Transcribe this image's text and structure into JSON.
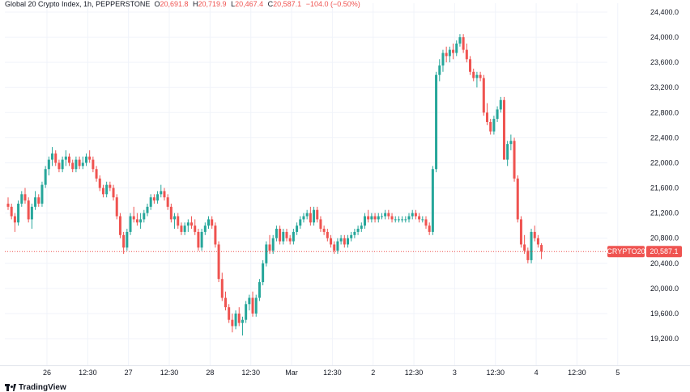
{
  "header": {
    "symbol": "Global 20 Crypto Index, 1h, PEPPERSTONE",
    "o_label": "O",
    "o_value": "20,691.8",
    "h_label": "H",
    "h_value": "20,719.9",
    "l_label": "L",
    "l_value": "20,467.4",
    "c_label": "C",
    "c_value": "20,587.1",
    "change": "−104.0 (−0.50%)"
  },
  "branding": {
    "logo_text": "TradingView"
  },
  "colors": {
    "up": "#26a69a",
    "down": "#ef5350",
    "price_line": "#ef5350",
    "grid": "#f0f3fa"
  },
  "chart_data": {
    "type": "candlestick",
    "title": "Global 20 Crypto Index, 1h, PEPPERSTONE",
    "ylim": [
      18950,
      24500
    ],
    "y_ticks": [
      "24,400.0",
      "24,000.0",
      "23,600.0",
      "23,200.0",
      "22,800.0",
      "22,400.0",
      "22,000.0",
      "21,600.0",
      "21,200.0",
      "20,800.0",
      "20,400.0",
      "20,000.0",
      "19,600.0",
      "19,200.0"
    ],
    "y_tick_values": [
      24400,
      24000,
      23600,
      23200,
      22800,
      22400,
      22000,
      21600,
      21200,
      20800,
      20400,
      20000,
      19600,
      19200
    ],
    "x_ticks": [
      "26",
      "12:30",
      "27",
      "12:30",
      "28",
      "12:30",
      "Mar",
      "12:30",
      "2",
      "12:30",
      "3",
      "12:30",
      "4",
      "12:30",
      "5"
    ],
    "x_tick_hours": [
      0,
      12,
      24,
      36,
      48,
      60,
      72,
      84,
      96,
      108,
      120,
      132,
      144,
      156,
      168
    ],
    "last_price": {
      "symbol": "CRYPTO20",
      "value": 20587.1,
      "label": "20,587.1"
    },
    "grid": true,
    "candles": [
      [
        0,
        21350,
        21450,
        21250,
        21300
      ],
      [
        1,
        21300,
        21350,
        21100,
        21150
      ],
      [
        2,
        21150,
        21200,
        20900,
        21050
      ],
      [
        3,
        21050,
        21400,
        21000,
        21350
      ],
      [
        4,
        21350,
        21550,
        21300,
        21500
      ],
      [
        5,
        21500,
        21600,
        21350,
        21400
      ],
      [
        6,
        21400,
        21450,
        21050,
        21100
      ],
      [
        7,
        21100,
        21350,
        20950,
        21300
      ],
      [
        8,
        21300,
        21550,
        21250,
        21450
      ],
      [
        9,
        21450,
        21500,
        21300,
        21350
      ],
      [
        10,
        21350,
        21700,
        21300,
        21650
      ],
      [
        11,
        21650,
        21950,
        21600,
        21900
      ],
      [
        12,
        21900,
        22100,
        21800,
        22050
      ],
      [
        13,
        22050,
        22250,
        21950,
        22150
      ],
      [
        14,
        22150,
        22200,
        21950,
        22000
      ],
      [
        15,
        22000,
        22050,
        21850,
        21900
      ],
      [
        16,
        21900,
        22100,
        21850,
        22050
      ],
      [
        17,
        22050,
        22200,
        21950,
        22100
      ],
      [
        18,
        22100,
        22150,
        21950,
        22000
      ],
      [
        19,
        22000,
        22050,
        21850,
        21900
      ],
      [
        20,
        21900,
        22100,
        21850,
        22050
      ],
      [
        21,
        22050,
        22100,
        21900,
        21950
      ],
      [
        22,
        21950,
        22100,
        21900,
        22000
      ],
      [
        23,
        22000,
        22150,
        21950,
        22100
      ],
      [
        24,
        22100,
        22200,
        22000,
        22050
      ],
      [
        25,
        22050,
        22100,
        21850,
        21900
      ],
      [
        26,
        21900,
        21950,
        21700,
        21750
      ],
      [
        27,
        21750,
        21800,
        21550,
        21600
      ],
      [
        28,
        21600,
        21650,
        21450,
        21500
      ],
      [
        29,
        21500,
        21700,
        21450,
        21650
      ],
      [
        30,
        21650,
        21700,
        21550,
        21600
      ],
      [
        31,
        21600,
        21650,
        21400,
        21450
      ],
      [
        32,
        21450,
        21500,
        21100,
        21150
      ],
      [
        33,
        21150,
        21200,
        20800,
        20850
      ],
      [
        34,
        20850,
        20900,
        20550,
        20650
      ],
      [
        35,
        20650,
        20950,
        20600,
        20900
      ],
      [
        36,
        20900,
        21200,
        20850,
        21150
      ],
      [
        37,
        21150,
        21300,
        21050,
        21100
      ],
      [
        38,
        21100,
        21200,
        21000,
        21050
      ],
      [
        39,
        21050,
        21200,
        20950,
        21100
      ],
      [
        40,
        21100,
        21250,
        21050,
        21200
      ],
      [
        41,
        21200,
        21350,
        21150,
        21300
      ],
      [
        42,
        21300,
        21500,
        21250,
        21450
      ],
      [
        43,
        21450,
        21500,
        21350,
        21400
      ],
      [
        44,
        21400,
        21550,
        21350,
        21500
      ],
      [
        45,
        21500,
        21650,
        21450,
        21550
      ],
      [
        46,
        21550,
        21600,
        21400,
        21450
      ],
      [
        47,
        21450,
        21500,
        21250,
        21300
      ],
      [
        48,
        21300,
        21350,
        21050,
        21100
      ],
      [
        49,
        21100,
        21200,
        20950,
        21150
      ],
      [
        50,
        21150,
        21200,
        20950,
        21000
      ],
      [
        51,
        21000,
        21050,
        20850,
        20900
      ],
      [
        52,
        20900,
        21050,
        20850,
        21000
      ],
      [
        53,
        21000,
        21100,
        20900,
        21050
      ],
      [
        54,
        21050,
        21150,
        20950,
        21000
      ],
      [
        55,
        21000,
        21100,
        20850,
        20900
      ],
      [
        56,
        20900,
        20950,
        20600,
        20650
      ],
      [
        57,
        20650,
        20950,
        20600,
        20900
      ],
      [
        58,
        20900,
        21050,
        20850,
        21000
      ],
      [
        59,
        21000,
        21150,
        20950,
        21100
      ],
      [
        60,
        21100,
        21150,
        20950,
        21000
      ],
      [
        61,
        21000,
        21050,
        20650,
        20700
      ],
      [
        62,
        20700,
        20750,
        20100,
        20150
      ],
      [
        63,
        20150,
        20250,
        19800,
        19850
      ],
      [
        64,
        19850,
        19950,
        19650,
        19700
      ],
      [
        65,
        19700,
        19750,
        19450,
        19500
      ],
      [
        66,
        19500,
        19600,
        19300,
        19400
      ],
      [
        67,
        19400,
        19650,
        19350,
        19600
      ],
      [
        68,
        19600,
        19700,
        19400,
        19450
      ],
      [
        69,
        19450,
        19550,
        19250,
        19500
      ],
      [
        70,
        19500,
        19800,
        19450,
        19750
      ],
      [
        71,
        19750,
        19900,
        19650,
        19850
      ],
      [
        72,
        19850,
        19950,
        19550,
        19600
      ],
      [
        73,
        19600,
        19900,
        19550,
        19850
      ],
      [
        74,
        19850,
        20150,
        19800,
        20100
      ],
      [
        75,
        20100,
        20450,
        20050,
        20400
      ],
      [
        76,
        20400,
        20750,
        20350,
        20700
      ],
      [
        77,
        20700,
        20850,
        20550,
        20600
      ],
      [
        78,
        20600,
        20850,
        20550,
        20800
      ],
      [
        79,
        20800,
        21000,
        20750,
        20950
      ],
      [
        80,
        20950,
        21000,
        20700,
        20750
      ],
      [
        81,
        20750,
        20950,
        20700,
        20900
      ],
      [
        82,
        20900,
        20950,
        20750,
        20800
      ],
      [
        83,
        20800,
        20850,
        20700,
        20750
      ],
      [
        84,
        20750,
        20950,
        20700,
        20900
      ],
      [
        85,
        20900,
        21050,
        20850,
        21000
      ],
      [
        86,
        21000,
        21150,
        20950,
        21100
      ],
      [
        87,
        21100,
        21200,
        21050,
        21150
      ],
      [
        88,
        21150,
        21250,
        21100,
        21200
      ],
      [
        89,
        21200,
        21300,
        21000,
        21050
      ],
      [
        90,
        21050,
        21300,
        21000,
        21250
      ],
      [
        91,
        21250,
        21300,
        21050,
        21100
      ],
      [
        92,
        21100,
        21150,
        20900,
        20950
      ],
      [
        93,
        20950,
        21000,
        20850,
        20900
      ],
      [
        94,
        20900,
        20950,
        20750,
        20800
      ],
      [
        95,
        20800,
        20850,
        20650,
        20700
      ],
      [
        96,
        20700,
        20750,
        20550,
        20600
      ],
      [
        97,
        20600,
        20800,
        20550,
        20750
      ],
      [
        98,
        20750,
        20850,
        20700,
        20800
      ],
      [
        99,
        20800,
        20850,
        20650,
        20700
      ],
      [
        100,
        20700,
        20850,
        20650,
        20800
      ],
      [
        101,
        20800,
        20900,
        20750,
        20850
      ],
      [
        102,
        20850,
        20950,
        20800,
        20900
      ],
      [
        103,
        20900,
        21000,
        20850,
        20950
      ],
      [
        104,
        20950,
        21050,
        20900,
        21000
      ],
      [
        105,
        21000,
        21200,
        20950,
        21150
      ],
      [
        106,
        21150,
        21250,
        21050,
        21100
      ],
      [
        107,
        21100,
        21200,
        21050,
        21150
      ],
      [
        108,
        21150,
        21200,
        21050,
        21100
      ],
      [
        109,
        21100,
        21200,
        21050,
        21150
      ],
      [
        110,
        21150,
        21200,
        21100,
        21150
      ],
      [
        111,
        21150,
        21250,
        21100,
        21200
      ],
      [
        112,
        21200,
        21250,
        21100,
        21150
      ],
      [
        113,
        21150,
        21200,
        21050,
        21100
      ],
      [
        114,
        21100,
        21150,
        21050,
        21100
      ],
      [
        115,
        21100,
        21150,
        21050,
        21100
      ],
      [
        116,
        21100,
        21150,
        21050,
        21100
      ],
      [
        117,
        21100,
        21150,
        21050,
        21100
      ],
      [
        118,
        21100,
        21200,
        21050,
        21150
      ],
      [
        119,
        21150,
        21250,
        21100,
        21200
      ],
      [
        120,
        21200,
        21250,
        21100,
        21150
      ],
      [
        121,
        21150,
        21200,
        21050,
        21100
      ],
      [
        122,
        21100,
        21150,
        21050,
        21100
      ],
      [
        123,
        21100,
        21150,
        20950,
        21000
      ],
      [
        124,
        21000,
        21050,
        20850,
        20900
      ],
      [
        125,
        20900,
        21950,
        20850,
        21900
      ],
      [
        126,
        21900,
        23450,
        21850,
        23400
      ],
      [
        127,
        23400,
        23650,
        23300,
        23550
      ],
      [
        128,
        23550,
        23800,
        23450,
        23750
      ],
      [
        129,
        23750,
        23850,
        23600,
        23700
      ],
      [
        130,
        23700,
        23850,
        23600,
        23800
      ],
      [
        131,
        23800,
        23900,
        23650,
        23750
      ],
      [
        132,
        23750,
        23950,
        23700,
        23900
      ],
      [
        133,
        23900,
        24050,
        23850,
        24000
      ],
      [
        134,
        24000,
        24050,
        23750,
        23800
      ],
      [
        135,
        23800,
        23900,
        23600,
        23650
      ],
      [
        136,
        23650,
        23700,
        23400,
        23450
      ],
      [
        137,
        23450,
        23500,
        23300,
        23350
      ],
      [
        138,
        23350,
        23450,
        23200,
        23400
      ],
      [
        139,
        23400,
        23450,
        23300,
        23350
      ],
      [
        140,
        23350,
        23400,
        22750,
        22800
      ],
      [
        141,
        22800,
        22950,
        22600,
        22650
      ],
      [
        142,
        22650,
        22700,
        22450,
        22500
      ],
      [
        143,
        22500,
        22750,
        22450,
        22700
      ],
      [
        144,
        22700,
        22900,
        22650,
        22850
      ],
      [
        145,
        22850,
        23050,
        22800,
        23000
      ],
      [
        146,
        23000,
        23050,
        22100,
        22050
      ],
      [
        147,
        22050,
        22350,
        21950,
        22300
      ],
      [
        148,
        22300,
        22450,
        22200,
        22350
      ],
      [
        149,
        22350,
        22400,
        21700,
        21750
      ],
      [
        150,
        21750,
        21800,
        21050,
        21100
      ],
      [
        151,
        21100,
        21150,
        20650,
        20700
      ],
      [
        152,
        20700,
        20850,
        20550,
        20600
      ],
      [
        153,
        20600,
        20650,
        20400,
        20450
      ],
      [
        154,
        20450,
        20950,
        20400,
        20900
      ],
      [
        155,
        20900,
        21000,
        20750,
        20800
      ],
      [
        156,
        20800,
        20850,
        20650,
        20700
      ],
      [
        157,
        20692,
        20720,
        20467,
        20587
      ]
    ]
  }
}
